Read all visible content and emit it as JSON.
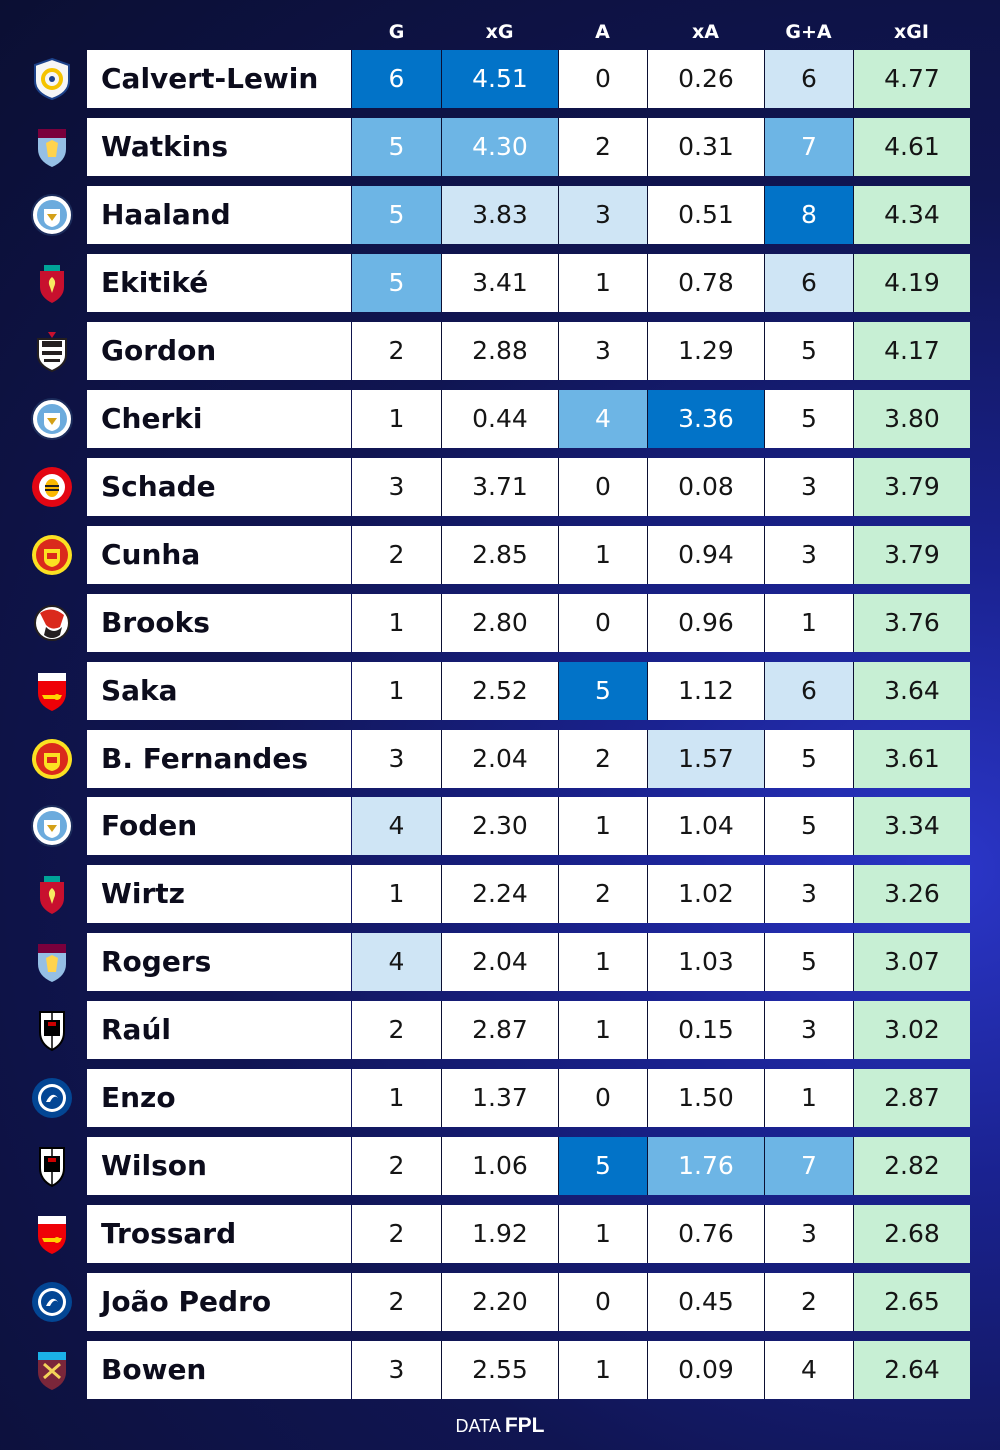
{
  "colors": {
    "shade_1": "#0273c8",
    "shade_2": "#6db5e5",
    "shade_3": "#cfe5f5",
    "plain": "#ffffff",
    "xgi": "#c7efd4"
  },
  "footer": {
    "prefix": "DATA",
    "brand": "FPL"
  },
  "chart_data": {
    "type": "table",
    "columns": [
      "G",
      "xG",
      "A",
      "xA",
      "G+A",
      "xGI"
    ],
    "rows": [
      {
        "player": "Calvert-Lewin",
        "club_icon": "leeds-crest-icon",
        "G": "6",
        "xG": "4.51",
        "A": "0",
        "xA": "0.26",
        "GA": "6",
        "xGI": "4.77",
        "shade": [
          1,
          1,
          0,
          0,
          3
        ]
      },
      {
        "player": "Watkins",
        "club_icon": "aston-villa-crest-icon",
        "G": "5",
        "xG": "4.30",
        "A": "2",
        "xA": "0.31",
        "GA": "7",
        "xGI": "4.61",
        "shade": [
          2,
          2,
          0,
          0,
          2
        ]
      },
      {
        "player": "Haaland",
        "club_icon": "man-city-crest-icon",
        "G": "5",
        "xG": "3.83",
        "A": "3",
        "xA": "0.51",
        "GA": "8",
        "xGI": "4.34",
        "shade": [
          2,
          3,
          3,
          0,
          1
        ]
      },
      {
        "player": "Ekitiké",
        "club_icon": "liverpool-crest-icon",
        "G": "5",
        "xG": "3.41",
        "A": "1",
        "xA": "0.78",
        "GA": "6",
        "xGI": "4.19",
        "shade": [
          2,
          0,
          0,
          0,
          3
        ]
      },
      {
        "player": "Gordon",
        "club_icon": "newcastle-crest-icon",
        "G": "2",
        "xG": "2.88",
        "A": "3",
        "xA": "1.29",
        "GA": "5",
        "xGI": "4.17",
        "shade": [
          0,
          0,
          0,
          0,
          0
        ]
      },
      {
        "player": "Cherki",
        "club_icon": "man-city-crest-icon",
        "G": "1",
        "xG": "0.44",
        "A": "4",
        "xA": "3.36",
        "GA": "5",
        "xGI": "3.80",
        "shade": [
          0,
          0,
          2,
          1,
          0
        ]
      },
      {
        "player": "Schade",
        "club_icon": "brentford-crest-icon",
        "G": "3",
        "xG": "3.71",
        "A": "0",
        "xA": "0.08",
        "GA": "3",
        "xGI": "3.79",
        "shade": [
          0,
          0,
          0,
          0,
          0
        ]
      },
      {
        "player": "Cunha",
        "club_icon": "man-united-crest-icon",
        "G": "2",
        "xG": "2.85",
        "A": "1",
        "xA": "0.94",
        "GA": "3",
        "xGI": "3.79",
        "shade": [
          0,
          0,
          0,
          0,
          0
        ]
      },
      {
        "player": "Brooks",
        "club_icon": "bournemouth-crest-icon",
        "G": "1",
        "xG": "2.80",
        "A": "0",
        "xA": "0.96",
        "GA": "1",
        "xGI": "3.76",
        "shade": [
          0,
          0,
          0,
          0,
          0
        ]
      },
      {
        "player": "Saka",
        "club_icon": "arsenal-crest-icon",
        "G": "1",
        "xG": "2.52",
        "A": "5",
        "xA": "1.12",
        "GA": "6",
        "xGI": "3.64",
        "shade": [
          0,
          0,
          1,
          0,
          3
        ]
      },
      {
        "player": "B. Fernandes",
        "club_icon": "man-united-crest-icon",
        "G": "3",
        "xG": "2.04",
        "A": "2",
        "xA": "1.57",
        "GA": "5",
        "xGI": "3.61",
        "shade": [
          0,
          0,
          0,
          3,
          0
        ]
      },
      {
        "player": "Foden",
        "club_icon": "man-city-crest-icon",
        "G": "4",
        "xG": "2.30",
        "A": "1",
        "xA": "1.04",
        "GA": "5",
        "xGI": "3.34",
        "shade": [
          3,
          0,
          0,
          0,
          0
        ]
      },
      {
        "player": "Wirtz",
        "club_icon": "liverpool-crest-icon",
        "G": "1",
        "xG": "2.24",
        "A": "2",
        "xA": "1.02",
        "GA": "3",
        "xGI": "3.26",
        "shade": [
          0,
          0,
          0,
          0,
          0
        ]
      },
      {
        "player": "Rogers",
        "club_icon": "aston-villa-crest-icon",
        "G": "4",
        "xG": "2.04",
        "A": "1",
        "xA": "1.03",
        "GA": "5",
        "xGI": "3.07",
        "shade": [
          3,
          0,
          0,
          0,
          0
        ]
      },
      {
        "player": "Raúl",
        "club_icon": "fulham-crest-icon",
        "G": "2",
        "xG": "2.87",
        "A": "1",
        "xA": "0.15",
        "GA": "3",
        "xGI": "3.02",
        "shade": [
          0,
          0,
          0,
          0,
          0
        ]
      },
      {
        "player": "Enzo",
        "club_icon": "chelsea-crest-icon",
        "G": "1",
        "xG": "1.37",
        "A": "0",
        "xA": "1.50",
        "GA": "1",
        "xGI": "2.87",
        "shade": [
          0,
          0,
          0,
          0,
          0
        ]
      },
      {
        "player": "Wilson",
        "club_icon": "fulham-crest-icon",
        "G": "2",
        "xG": "1.06",
        "A": "5",
        "xA": "1.76",
        "GA": "7",
        "xGI": "2.82",
        "shade": [
          0,
          0,
          1,
          2,
          2
        ]
      },
      {
        "player": "Trossard",
        "club_icon": "arsenal-crest-icon",
        "G": "2",
        "xG": "1.92",
        "A": "1",
        "xA": "0.76",
        "GA": "3",
        "xGI": "2.68",
        "shade": [
          0,
          0,
          0,
          0,
          0
        ]
      },
      {
        "player": "João Pedro",
        "club_icon": "chelsea-crest-icon",
        "G": "2",
        "xG": "2.20",
        "A": "0",
        "xA": "0.45",
        "GA": "2",
        "xGI": "2.65",
        "shade": [
          0,
          0,
          0,
          0,
          0
        ]
      },
      {
        "player": "Bowen",
        "club_icon": "west-ham-crest-icon",
        "G": "3",
        "xG": "2.55",
        "A": "1",
        "xA": "0.09",
        "GA": "4",
        "xGI": "2.64",
        "shade": [
          0,
          0,
          0,
          0,
          0
        ]
      }
    ]
  }
}
